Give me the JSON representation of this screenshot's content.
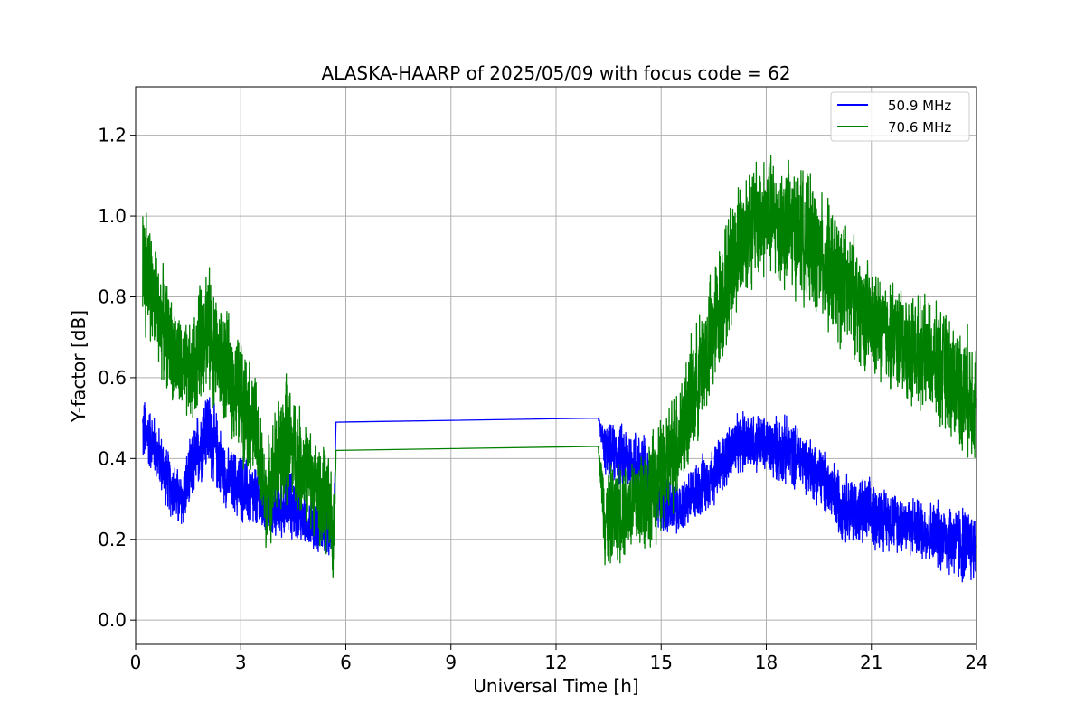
{
  "chart_data": {
    "type": "line",
    "title": "ALASKA-HAARP of 2025/05/09 with focus code = 62",
    "xlabel": "Universal Time [h]",
    "ylabel": "Y-factor [dB]",
    "xlim": [
      0,
      24
    ],
    "ylim": [
      -0.06,
      1.32
    ],
    "xticks": [
      0,
      3,
      6,
      9,
      12,
      15,
      18,
      21,
      24
    ],
    "xtick_labels": [
      "0",
      "3",
      "6",
      "9",
      "12",
      "15",
      "18",
      "21",
      "24"
    ],
    "yticks": [
      0.0,
      0.2,
      0.4,
      0.6,
      0.8,
      1.0,
      1.2
    ],
    "ytick_labels": [
      "0.0",
      "0.2",
      "0.4",
      "0.6",
      "0.8",
      "1.0",
      "1.2"
    ],
    "grid": true,
    "legend_position": "top-right",
    "series": [
      {
        "name": "50.9 MHz",
        "color": "#0000ff",
        "x": [
          0.2,
          0.5,
          1.0,
          1.3,
          1.6,
          2.0,
          2.3,
          2.6,
          3.0,
          3.4,
          3.7,
          4.0,
          4.4,
          4.8,
          5.2,
          5.5,
          5.65,
          5.72,
          13.2,
          13.4,
          14.0,
          14.5,
          15.0,
          15.5,
          16.0,
          16.5,
          17.0,
          17.5,
          18.0,
          18.5,
          19.0,
          19.5,
          20.0,
          20.5,
          21.0,
          21.5,
          22.0,
          22.5,
          23.0,
          23.5,
          24.0
        ],
        "y": [
          0.47,
          0.44,
          0.33,
          0.29,
          0.37,
          0.48,
          0.42,
          0.35,
          0.33,
          0.3,
          0.28,
          0.27,
          0.29,
          0.25,
          0.23,
          0.22,
          0.21,
          0.49,
          0.5,
          0.42,
          0.4,
          0.38,
          0.29,
          0.27,
          0.32,
          0.36,
          0.42,
          0.45,
          0.43,
          0.42,
          0.4,
          0.36,
          0.3,
          0.27,
          0.26,
          0.25,
          0.24,
          0.22,
          0.21,
          0.19,
          0.18
        ],
        "amplitude": [
          0.07,
          0.06,
          0.06,
          0.06,
          0.07,
          0.09,
          0.08,
          0.06,
          0.07,
          0.07,
          0.06,
          0.05,
          0.07,
          0.05,
          0.05,
          0.05,
          0.04,
          0.0,
          0.0,
          0.05,
          0.07,
          0.07,
          0.06,
          0.05,
          0.06,
          0.06,
          0.06,
          0.06,
          0.06,
          0.07,
          0.06,
          0.06,
          0.07,
          0.07,
          0.07,
          0.06,
          0.06,
          0.06,
          0.07,
          0.08,
          0.07
        ]
      },
      {
        "name": "70.6 MHz",
        "color": "#008000",
        "x": [
          0.2,
          0.5,
          1.0,
          1.3,
          1.6,
          2.0,
          2.3,
          2.6,
          3.0,
          3.4,
          3.7,
          4.0,
          4.3,
          4.8,
          5.2,
          5.5,
          5.65,
          5.72,
          13.2,
          13.4,
          14.0,
          14.5,
          15.0,
          15.5,
          16.0,
          16.5,
          17.0,
          17.5,
          18.0,
          18.5,
          19.0,
          19.5,
          20.0,
          20.5,
          21.0,
          21.5,
          22.0,
          22.5,
          23.0,
          23.5,
          24.0
        ],
        "y": [
          0.9,
          0.8,
          0.68,
          0.62,
          0.6,
          0.74,
          0.66,
          0.62,
          0.55,
          0.48,
          0.3,
          0.38,
          0.45,
          0.38,
          0.32,
          0.28,
          0.2,
          0.42,
          0.43,
          0.25,
          0.28,
          0.3,
          0.35,
          0.45,
          0.58,
          0.72,
          0.88,
          0.98,
          1.0,
          0.98,
          0.96,
          0.9,
          0.85,
          0.8,
          0.73,
          0.71,
          0.68,
          0.66,
          0.62,
          0.58,
          0.55
        ],
        "amplitude": [
          0.14,
          0.12,
          0.1,
          0.1,
          0.1,
          0.13,
          0.12,
          0.11,
          0.12,
          0.11,
          0.1,
          0.12,
          0.13,
          0.1,
          0.1,
          0.1,
          0.1,
          0.0,
          0.0,
          0.1,
          0.1,
          0.11,
          0.12,
          0.12,
          0.12,
          0.13,
          0.13,
          0.13,
          0.12,
          0.13,
          0.13,
          0.13,
          0.13,
          0.12,
          0.11,
          0.11,
          0.11,
          0.11,
          0.12,
          0.12,
          0.13
        ]
      }
    ]
  }
}
